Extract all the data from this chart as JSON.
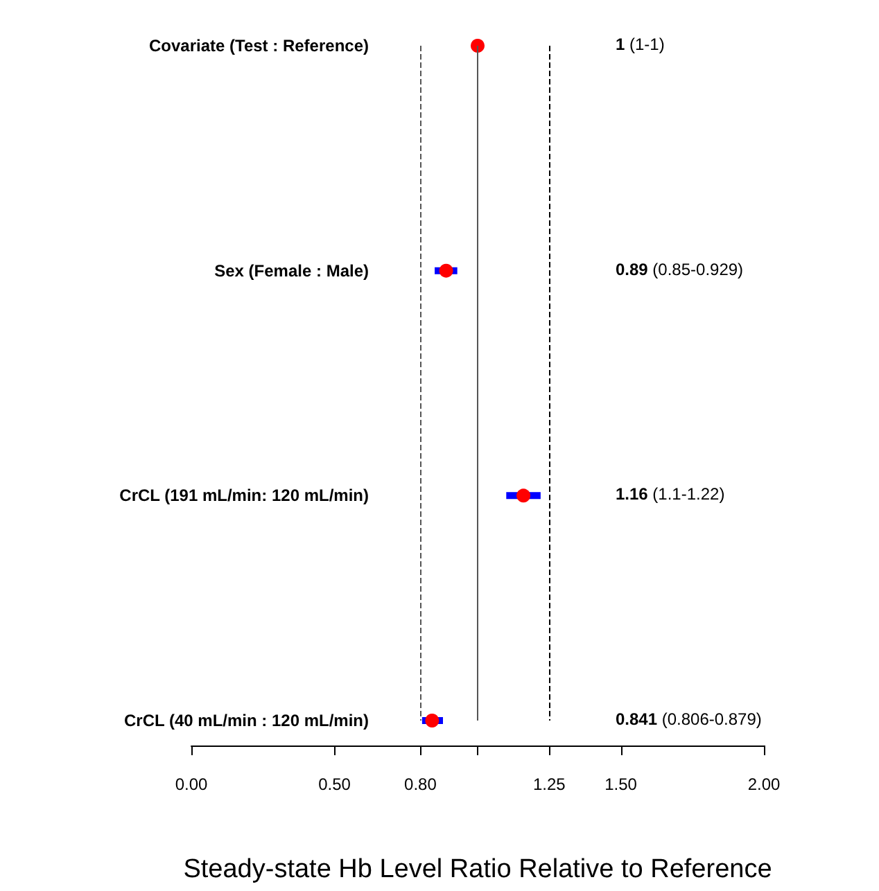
{
  "chart_data": {
    "type": "scatter",
    "orientation": "horizontal",
    "xlabel": "Steady-state Hb Level Ratio Relative to Reference",
    "categories": [
      "Covariate (Test : Reference)",
      "Sex (Female : Male)",
      "CrCL (191 mL/min: 120 mL/min)",
      "CrCL (40 mL/min : 120 mL/min)"
    ],
    "series": [
      {
        "color": "#ff0000",
        "values": [
          1,
          0.89,
          1.16,
          0.841
        ],
        "errors": [
          [
            1,
            1
          ],
          [
            0.85,
            0.929
          ],
          [
            1.1,
            1.22
          ],
          [
            0.806,
            0.879
          ]
        ]
      }
    ],
    "annotations": [
      "1 (1-1)",
      "0.89 (0.85-0.929)",
      "1.16 (1.1-1.22)",
      "0.841 (0.806-0.879)"
    ],
    "xlim": [
      0,
      2
    ],
    "xticks": [
      {
        "value": 0,
        "label": "0.00"
      },
      {
        "value": 0.5,
        "label": "0.50"
      },
      {
        "value": 0.8,
        "label": "0.80"
      },
      {
        "value": 1,
        "label": null
      },
      {
        "value": 1.25,
        "label": "1.25"
      },
      {
        "value": 1.5,
        "label": "1.50"
      },
      {
        "value": 2,
        "label": "2.00"
      }
    ],
    "ref_lines": [
      {
        "axis": "x",
        "value": 0.8,
        "color": "#555555",
        "line_style": "dashed"
      },
      {
        "axis": "x",
        "value": 1,
        "color": "#555555",
        "line_style": "solid"
      },
      {
        "axis": "x",
        "value": 1.25,
        "color": "#000000",
        "line_style": "dashed"
      }
    ],
    "grid": false,
    "legend": false,
    "marker": "circle"
  }
}
